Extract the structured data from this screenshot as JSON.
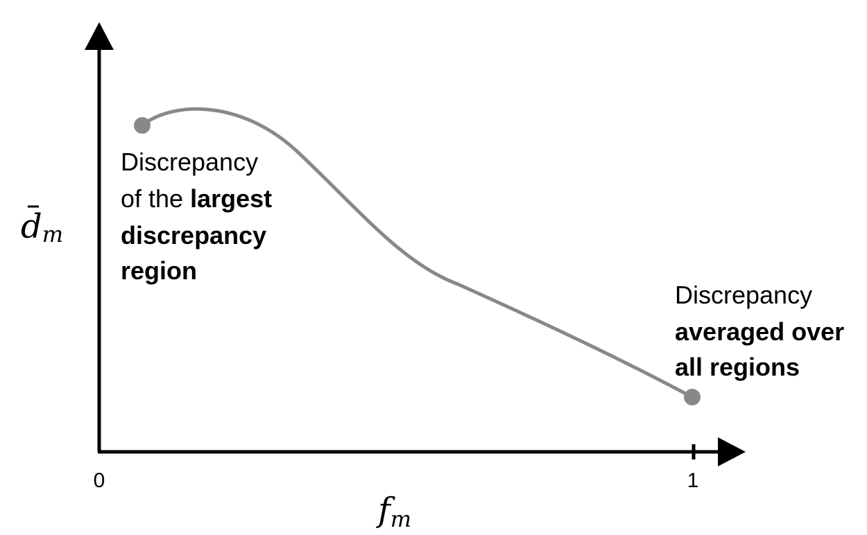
{
  "axes": {
    "x_label_main": "f",
    "x_label_sub": "m",
    "y_label_main": "d",
    "y_label_sub": "m",
    "x_tick_start": "0",
    "x_tick_end": "1"
  },
  "annotations": {
    "left": {
      "line1": "Discrepancy",
      "line2_regular": "of the ",
      "line2_bold": "largest",
      "line3_bold": "discrepancy",
      "line4_bold": "region"
    },
    "right": {
      "line1": "Discrepancy",
      "line2_bold": "averaged over",
      "line3_bold": "all regions"
    }
  },
  "colors": {
    "curve": "#888888",
    "axes": "#000000"
  }
}
